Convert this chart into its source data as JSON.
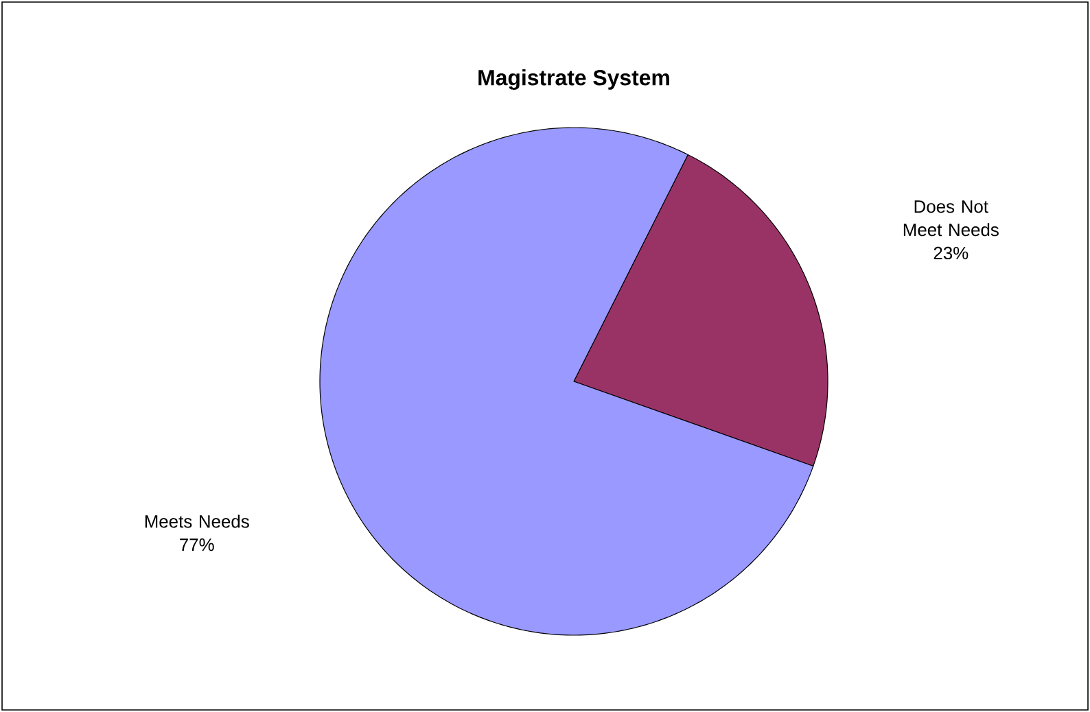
{
  "chart_data": {
    "type": "pie",
    "title": "Magistrate System",
    "categories": [
      "Does Not Meet Needs",
      "Meets Needs"
    ],
    "values": [
      23,
      77
    ],
    "colors": [
      "#993366",
      "#9999ff"
    ],
    "value_labels": [
      "23%",
      "77%"
    ]
  }
}
